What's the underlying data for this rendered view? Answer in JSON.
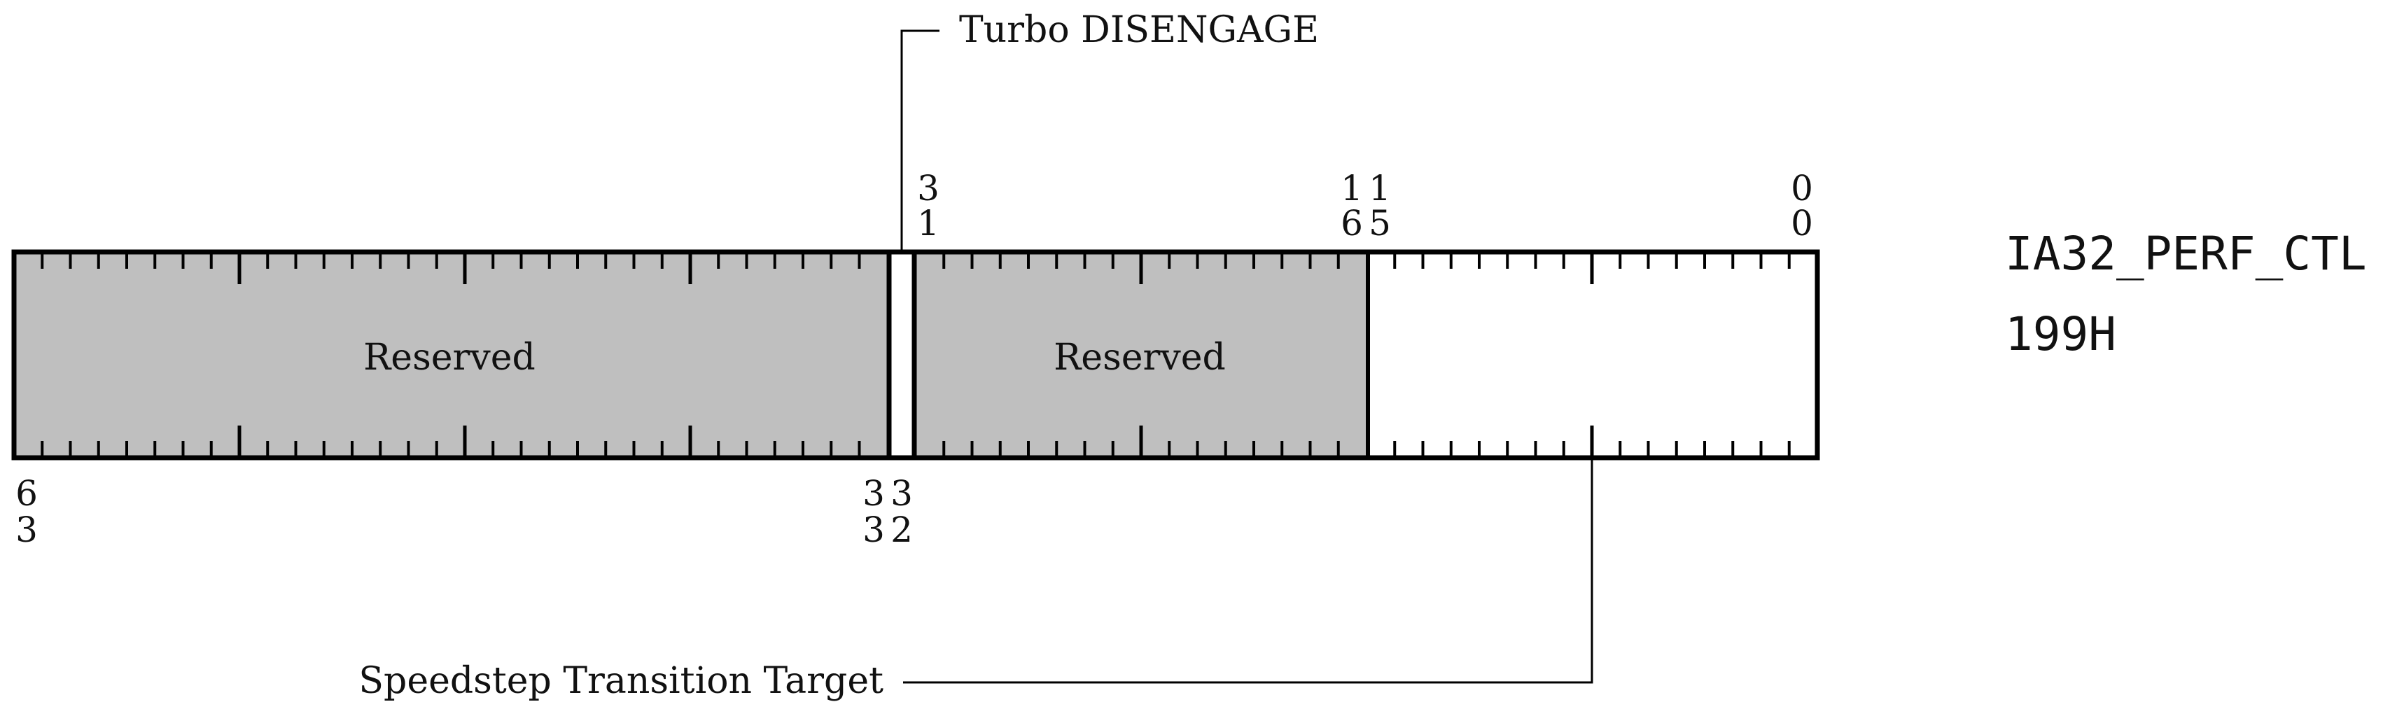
{
  "register": {
    "name": "IA32_PERF_CTL",
    "address": "199H"
  },
  "fields": {
    "reserved_high": {
      "label": "Reserved",
      "fill": "#bfbfbf"
    },
    "turbo": {
      "label": "Turbo DISENGAGE"
    },
    "reserved_mid": {
      "label": "Reserved",
      "fill": "#bfbfbf"
    },
    "speedstep": {
      "label": "Speedstep Transition Target",
      "fill": "#ffffff"
    }
  },
  "bit_labels": {
    "b63": {
      "top": "6",
      "bottom": "3"
    },
    "b33": {
      "top": "3",
      "bottom": "3"
    },
    "b32": {
      "top": "3",
      "bottom": "2"
    },
    "b31": {
      "top": "3",
      "bottom": "1"
    },
    "b16": {
      "top": "1",
      "bottom": "6"
    },
    "b15": {
      "top": "1",
      "bottom": "5"
    },
    "b0": {
      "top": "0",
      "bottom": "0"
    }
  },
  "colors": {
    "outline": "#000000",
    "reserved_fill": "#bfbfbf"
  }
}
